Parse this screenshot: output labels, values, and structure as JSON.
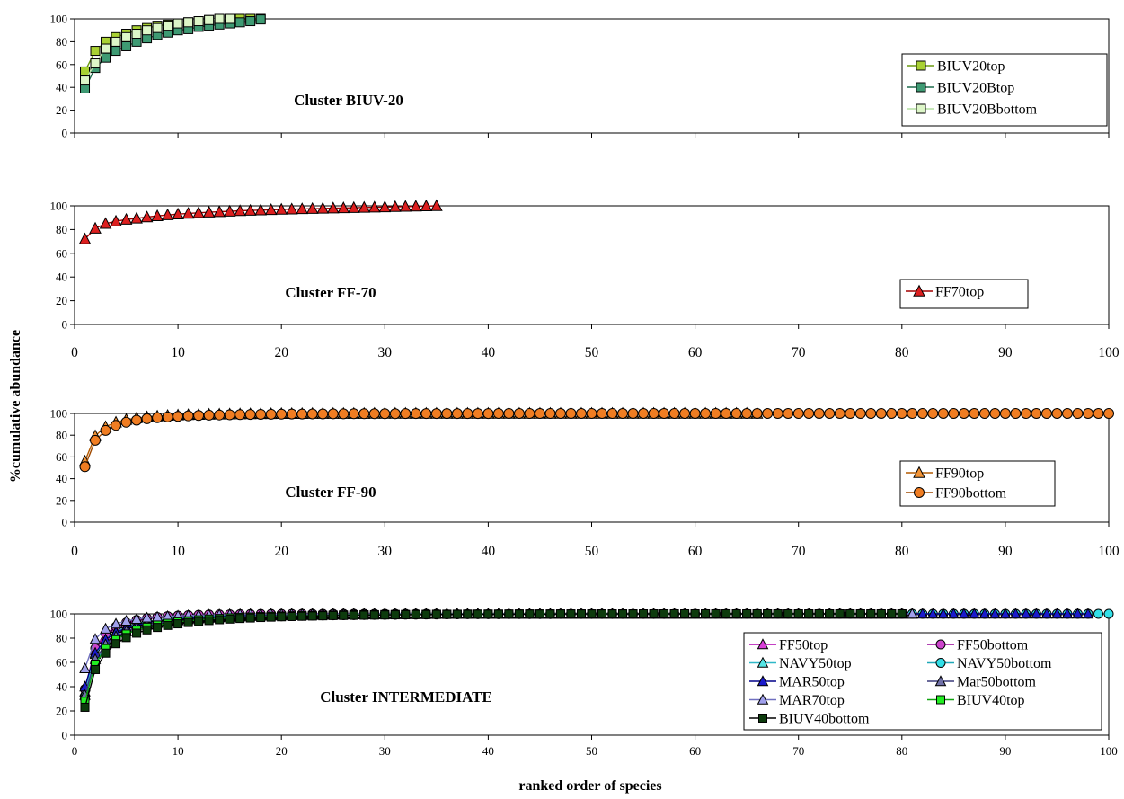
{
  "y_axis_label": "%cumulative abundance",
  "x_axis_label": "ranked order of species",
  "chart_data": [
    {
      "type": "line",
      "title": "Cluster BIUV-20",
      "ylim": [
        0,
        100
      ],
      "yticks": [
        0,
        20,
        40,
        60,
        80,
        100
      ],
      "xlim": [
        0,
        100
      ],
      "xticks": [],
      "grid": false,
      "legend_position": "right",
      "series": [
        {
          "name": "BIUV20top",
          "marker": "square",
          "fill": "#a9d133",
          "line": "#6b9a10",
          "x": [
            1,
            2,
            3,
            4,
            5,
            6,
            7,
            8,
            9,
            10,
            11,
            12,
            13,
            14,
            15,
            16,
            17,
            18
          ],
          "y": [
            54,
            72,
            80,
            84,
            87,
            90,
            92,
            94,
            95,
            96,
            97,
            98,
            99,
            99.5,
            100,
            100,
            100,
            100
          ]
        },
        {
          "name": "BIUV20Btop",
          "marker": "square",
          "fill": "#3e9a73",
          "line": "#1e6b4d",
          "x": [
            1,
            2,
            3,
            4,
            5,
            6,
            7,
            8,
            9,
            10,
            11,
            12,
            13,
            14,
            15,
            16,
            17,
            18
          ],
          "y": [
            39,
            57,
            66,
            72,
            76,
            80,
            83,
            86,
            88,
            90,
            91,
            93,
            94,
            95,
            96,
            97,
            98,
            99.5
          ]
        },
        {
          "name": "BIUV20Bbottom",
          "marker": "square",
          "fill": "#ddf6c8",
          "line": "#b4dfa1",
          "x": [
            1,
            2,
            3,
            4,
            5,
            6,
            7,
            8,
            9,
            10,
            11,
            12,
            13,
            14,
            15
          ],
          "y": [
            46,
            61,
            74,
            80,
            84,
            87,
            90,
            92,
            94,
            96,
            97,
            98,
            99,
            100,
            100
          ]
        }
      ]
    },
    {
      "type": "line",
      "title": "Cluster FF-70",
      "ylim": [
        0,
        100
      ],
      "yticks": [
        0,
        20,
        40,
        60,
        80,
        100
      ],
      "xlim": [
        0,
        100
      ],
      "xticks": [
        0,
        10,
        20,
        30,
        40,
        50,
        60,
        70,
        80,
        90,
        100
      ],
      "grid": false,
      "legend_position": "right",
      "series": [
        {
          "name": "FF70top",
          "marker": "triangle",
          "fill": "#dd1f1f",
          "line": "#a30000",
          "x": [
            1,
            2,
            3,
            4,
            5,
            6,
            7,
            8,
            9,
            10,
            11,
            12,
            13,
            14,
            15,
            16,
            17,
            18,
            19,
            20,
            21,
            22,
            23,
            24,
            25,
            26,
            27,
            28,
            29,
            30,
            31,
            32,
            33,
            34,
            35
          ],
          "y": [
            72,
            81,
            85,
            87,
            88.5,
            89.5,
            90.5,
            91.5,
            92.3,
            93,
            93.6,
            94.1,
            94.6,
            95,
            95.4,
            95.8,
            96.1,
            96.4,
            96.7,
            97,
            97.2,
            97.4,
            97.6,
            97.8,
            98,
            98.2,
            98.4,
            98.6,
            98.8,
            99,
            99.2,
            99.4,
            99.6,
            99.8,
            100
          ]
        }
      ]
    },
    {
      "type": "line",
      "title": "Cluster FF-90",
      "ylim": [
        0,
        100
      ],
      "yticks": [
        0,
        20,
        40,
        60,
        80,
        100
      ],
      "xlim": [
        0,
        100
      ],
      "xticks": [
        0,
        10,
        20,
        30,
        40,
        50,
        60,
        70,
        80,
        90,
        100
      ],
      "grid": false,
      "legend_position": "right",
      "series": [
        {
          "name": "FF90top",
          "marker": "triangle",
          "fill": "#f39436",
          "line": "#b35a00",
          "curve": {
            "start": 56,
            "end": 100,
            "count": 66,
            "k": 4.2
          }
        },
        {
          "name": "FF90bottom",
          "marker": "circle",
          "fill": "#f07d22",
          "line": "#a04a00",
          "curve": {
            "start": 51,
            "end": 100,
            "count": 100,
            "k": 4.2
          }
        }
      ]
    },
    {
      "type": "line",
      "title": "Cluster INTERMEDIATE",
      "ylim": [
        0,
        100
      ],
      "yticks": [
        0,
        20,
        40,
        60,
        80,
        100
      ],
      "xlim": [
        0,
        100
      ],
      "xticks": [
        0,
        10,
        20,
        30,
        40,
        50,
        60,
        70,
        80,
        90,
        100
      ],
      "grid": false,
      "legend_position": "right",
      "series": [
        {
          "name": "FF50top",
          "marker": "triangle",
          "fill": "#d93fd9",
          "line": "#b000b0",
          "curve": {
            "start": 36,
            "end": 100,
            "count": 40,
            "k": 3.6
          }
        },
        {
          "name": "FF50bottom",
          "marker": "circle",
          "fill": "#cc44cc",
          "line": "#990099",
          "curve": {
            "start": 38,
            "end": 100,
            "count": 35,
            "k": 3.6
          }
        },
        {
          "name": "NAVY50top",
          "marker": "triangle",
          "fill": "#55e5e5",
          "line": "#2fb8c8",
          "curve": {
            "start": 35,
            "end": 100,
            "count": 60,
            "k": 3.6
          }
        },
        {
          "name": "NAVY50bottom",
          "marker": "circle",
          "fill": "#33e0e8",
          "line": "#1fa8b8",
          "curve": {
            "start": 30,
            "end": 100,
            "count": 100,
            "k": 3.4
          }
        },
        {
          "name": "MAR50top",
          "marker": "triangle",
          "fill": "#1a1acc",
          "line": "#000088",
          "curve": {
            "start": 40,
            "end": 100,
            "count": 98,
            "k": 3.8
          }
        },
        {
          "name": "Mar50bottom",
          "marker": "triangle",
          "fill": "#7070a8",
          "line": "#3a3a7a",
          "curve": {
            "start": 33,
            "end": 100,
            "count": 81,
            "k": 3.4
          }
        },
        {
          "name": "MAR70top",
          "marker": "triangle",
          "fill": "#a0a0ec",
          "line": "#7070c0",
          "curve": {
            "start": 55,
            "end": 100,
            "count": 81,
            "k": 4.5
          }
        },
        {
          "name": "BIUV40top",
          "marker": "square",
          "fill": "#22ee22",
          "line": "#11a511",
          "curve": {
            "start": 28,
            "end": 100,
            "count": 80,
            "k": 3.2
          }
        },
        {
          "name": "BIUV40bottom",
          "marker": "square",
          "fill": "#0d3b0d",
          "line": "#000000",
          "curve": {
            "start": 23,
            "end": 100,
            "count": 80,
            "k": 3.0
          }
        }
      ]
    }
  ]
}
